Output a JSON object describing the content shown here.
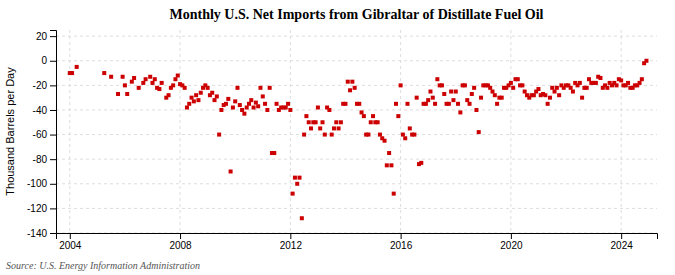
{
  "chart_data": {
    "type": "scatter",
    "title": "Monthly U.S. Net Imports from Gibraltar of Distillate Fuel Oil",
    "ylabel": "Thousand Barrels per Day",
    "source": "Source: U.S. Energy Information Administration",
    "color": "#CC0000",
    "marker": "square",
    "grid": true,
    "xlim": [
      2003.5,
      2025.3
    ],
    "ylim": [
      -140,
      25
    ],
    "xticks": [
      2004,
      2008,
      2012,
      2016,
      2020,
      2024
    ],
    "yticks": [
      20,
      0,
      -20,
      -40,
      -60,
      -80,
      -100,
      -120,
      -140
    ],
    "x": [
      2004.0,
      2004.083,
      2004.25,
      2005.25,
      2005.5,
      2005.75,
      2005.917,
      2006.0,
      2006.083,
      2006.25,
      2006.333,
      2006.5,
      2006.667,
      2006.75,
      2006.917,
      2007.0,
      2007.083,
      2007.167,
      2007.25,
      2007.333,
      2007.5,
      2007.583,
      2007.667,
      2007.75,
      2007.833,
      2007.917,
      2008.0,
      2008.083,
      2008.167,
      2008.25,
      2008.333,
      2008.417,
      2008.5,
      2008.583,
      2008.667,
      2008.75,
      2008.833,
      2008.917,
      2009.0,
      2009.083,
      2009.167,
      2009.25,
      2009.333,
      2009.417,
      2009.5,
      2009.583,
      2009.667,
      2009.75,
      2009.833,
      2009.917,
      2010.0,
      2010.083,
      2010.167,
      2010.25,
      2010.333,
      2010.417,
      2010.5,
      2010.583,
      2010.667,
      2010.75,
      2010.833,
      2010.917,
      2011.0,
      2011.083,
      2011.167,
      2011.25,
      2011.333,
      2011.417,
      2011.5,
      2011.583,
      2011.667,
      2011.75,
      2011.833,
      2011.917,
      2012.0,
      2012.083,
      2012.167,
      2012.25,
      2012.333,
      2012.417,
      2012.5,
      2012.583,
      2012.667,
      2012.75,
      2012.833,
      2012.917,
      2013.0,
      2013.083,
      2013.167,
      2013.25,
      2013.333,
      2013.417,
      2013.5,
      2013.583,
      2013.667,
      2013.75,
      2013.833,
      2013.917,
      2014.0,
      2014.083,
      2014.167,
      2014.25,
      2014.333,
      2014.417,
      2014.5,
      2014.583,
      2014.667,
      2014.75,
      2014.833,
      2014.917,
      2015.0,
      2015.083,
      2015.167,
      2015.25,
      2015.333,
      2015.417,
      2015.5,
      2015.583,
      2015.667,
      2015.75,
      2015.833,
      2015.917,
      2016.0,
      2016.083,
      2016.167,
      2016.25,
      2016.333,
      2016.417,
      2016.5,
      2016.583,
      2016.667,
      2016.75,
      2016.833,
      2016.917,
      2017.0,
      2017.083,
      2017.167,
      2017.25,
      2017.333,
      2017.417,
      2017.5,
      2017.583,
      2017.667,
      2017.75,
      2017.833,
      2017.917,
      2018.0,
      2018.083,
      2018.167,
      2018.25,
      2018.333,
      2018.417,
      2018.5,
      2018.583,
      2018.667,
      2018.75,
      2018.833,
      2018.917,
      2019.0,
      2019.083,
      2019.167,
      2019.25,
      2019.333,
      2019.417,
      2019.5,
      2019.583,
      2019.667,
      2019.75,
      2019.833,
      2019.917,
      2020.0,
      2020.083,
      2020.167,
      2020.25,
      2020.333,
      2020.417,
      2020.5,
      2020.583,
      2020.667,
      2020.75,
      2020.833,
      2020.917,
      2021.0,
      2021.083,
      2021.167,
      2021.25,
      2021.333,
      2021.417,
      2021.5,
      2021.583,
      2021.667,
      2021.75,
      2021.833,
      2021.917,
      2022.0,
      2022.083,
      2022.167,
      2022.25,
      2022.333,
      2022.417,
      2022.5,
      2022.583,
      2022.667,
      2022.75,
      2022.833,
      2022.917,
      2023.0,
      2023.083,
      2023.167,
      2023.25,
      2023.333,
      2023.417,
      2023.5,
      2023.583,
      2023.667,
      2023.75,
      2023.833,
      2023.917,
      2024.0,
      2024.083,
      2024.167,
      2024.25,
      2024.333,
      2024.417,
      2024.5,
      2024.583,
      2024.667,
      2024.75,
      2024.833,
      2024.917
    ],
    "values": [
      -10,
      -10,
      -5,
      -10,
      -13,
      -27,
      -13,
      -20,
      -27,
      -17,
      -14,
      -22,
      -18,
      -15,
      -13,
      -18,
      -15,
      -22,
      -23,
      -18,
      -30,
      -28,
      -22,
      -20,
      -15,
      -12,
      -19,
      -20,
      -22,
      -38,
      -35,
      -30,
      -33,
      -28,
      -32,
      -26,
      -22,
      -20,
      -22,
      -28,
      -26,
      -32,
      -29,
      -60,
      -40,
      -36,
      -35,
      -31,
      -90,
      -38,
      -33,
      -22,
      -36,
      -40,
      -43,
      -38,
      -35,
      -32,
      -38,
      -34,
      -37,
      -22,
      -29,
      -35,
      -40,
      -22,
      -75,
      -75,
      -35,
      -40,
      -38,
      -38,
      -38,
      -35,
      -40,
      -108,
      -95,
      -100,
      -95,
      -128,
      -60,
      -45,
      -50,
      -55,
      -50,
      -50,
      -38,
      -55,
      -50,
      -60,
      -38,
      -40,
      -60,
      -55,
      -50,
      -55,
      -50,
      -35,
      -35,
      -17,
      -24,
      -17,
      -22,
      -35,
      -35,
      -42,
      -45,
      -60,
      -60,
      -50,
      -45,
      -50,
      -50,
      -60,
      -63,
      -65,
      -85,
      -75,
      -85,
      -108,
      -35,
      -45,
      -20,
      -60,
      -63,
      -35,
      -55,
      -60,
      -60,
      -30,
      -84,
      -83,
      -35,
      -35,
      -32,
      -25,
      -30,
      -35,
      -15,
      -20,
      -20,
      -27,
      -35,
      -35,
      -25,
      -32,
      -25,
      -35,
      -42,
      -20,
      -20,
      -32,
      -35,
      -27,
      -22,
      -40,
      -58,
      -30,
      -20,
      -20,
      -20,
      -22,
      -25,
      -28,
      -35,
      -30,
      -30,
      -22,
      -22,
      -20,
      -18,
      -22,
      -15,
      -15,
      -20,
      -20,
      -25,
      -28,
      -30,
      -28,
      -28,
      -25,
      -23,
      -28,
      -27,
      -28,
      -35,
      -30,
      -22,
      -25,
      -22,
      -28,
      -20,
      -22,
      -20,
      -20,
      -22,
      -25,
      -18,
      -20,
      -18,
      -30,
      -22,
      -22,
      -15,
      -18,
      -18,
      -18,
      -13,
      -14,
      -22,
      -20,
      -22,
      -18,
      -20,
      -18,
      -20,
      -15,
      -16,
      -20,
      -20,
      -18,
      -22,
      -22,
      -20,
      -20,
      -18,
      -15,
      -2,
      0
    ]
  }
}
